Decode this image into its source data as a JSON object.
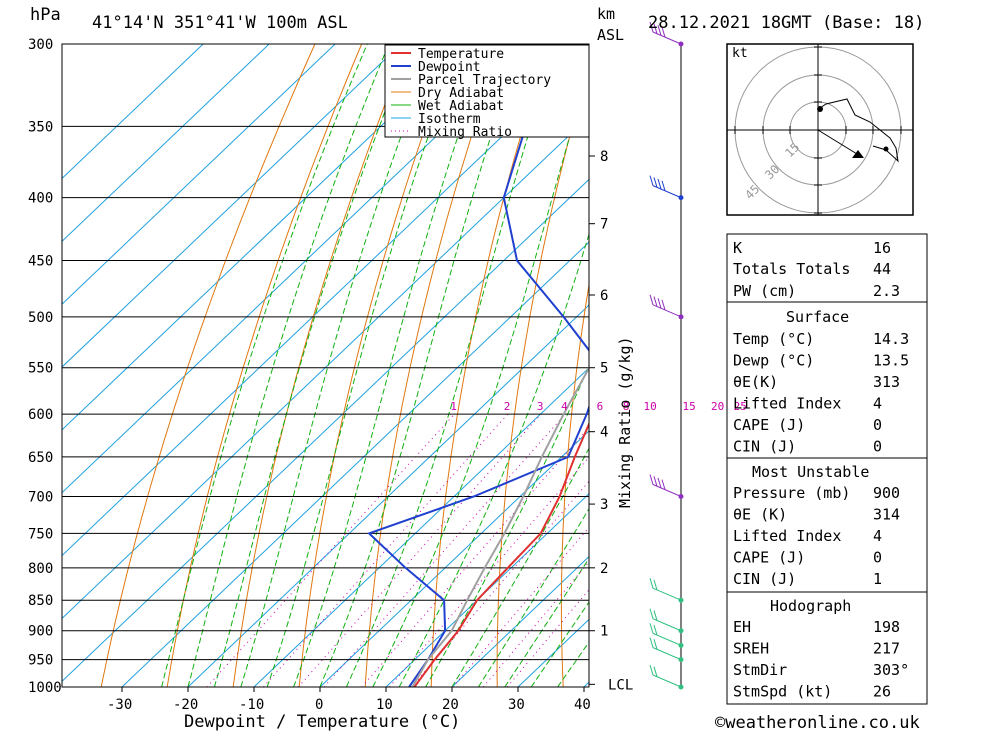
{
  "header": {
    "p_unit": "hPa",
    "location": "41°14'N  351°41'W  100m  ASL",
    "km_unit": "km",
    "km_sub": "ASL",
    "datetime": "28.12.2021  18GMT  (Base: 18)"
  },
  "footer": {
    "credit": "©weatheronline.co.uk"
  },
  "colors": {
    "temperature": "#e03030",
    "dewpoint": "#2040d0",
    "parcel": "#a0a0a0",
    "dry_adiabat": "#e07810",
    "wet_adiabat": "#10b010",
    "isotherm": "#20a0e0",
    "mixing_ratio": "#cc00aa",
    "wind": "#9030c0",
    "wind_low": "#30c080"
  },
  "chart_data": {
    "type": "skew-t",
    "xlabel": "Dewpoint / Temperature (°C)",
    "y2label": "Mixing Ratio (g/kg)",
    "pressure_levels": [
      300,
      350,
      400,
      450,
      500,
      550,
      600,
      650,
      700,
      750,
      800,
      850,
      900,
      950,
      1000
    ],
    "temp_ticks": [
      -30,
      -20,
      -10,
      0,
      10,
      20,
      30,
      40
    ],
    "km_ticks": [
      {
        "label": "8",
        "p": 370
      },
      {
        "label": "7",
        "p": 420
      },
      {
        "label": "6",
        "p": 480
      },
      {
        "label": "5",
        "p": 550
      },
      {
        "label": "4",
        "p": 620
      },
      {
        "label": "3",
        "p": 710
      },
      {
        "label": "2",
        "p": 800
      },
      {
        "label": "1",
        "p": 900
      },
      {
        "label": "LCL",
        "p": 995
      }
    ],
    "mixing_ratio_labels": [
      "1",
      "2",
      "3",
      "4",
      "6",
      "8",
      "10",
      "15",
      "20",
      "25"
    ],
    "mixing_ratio_values": [
      1,
      2,
      3,
      4,
      6,
      8,
      10,
      15,
      20,
      25
    ],
    "legend": [
      "Temperature",
      "Dewpoint",
      "Parcel Trajectory",
      "Dry Adiabat",
      "Wet Adiabat",
      "Isotherm",
      "Mixing Ratio"
    ],
    "series": [
      {
        "name": "Temperature",
        "points": [
          [
            14.3,
            1000
          ],
          [
            13,
            950
          ],
          [
            12,
            900
          ],
          [
            10,
            850
          ],
          [
            9.5,
            800
          ],
          [
            9,
            750
          ],
          [
            6,
            700
          ],
          [
            2,
            650
          ],
          [
            -2,
            600
          ],
          [
            -5,
            550
          ],
          [
            -8,
            500
          ],
          [
            -13,
            450
          ],
          [
            -20,
            400
          ],
          [
            -28,
            350
          ],
          [
            -36,
            300
          ]
        ]
      },
      {
        "name": "Dewpoint",
        "points": [
          [
            13.5,
            1000
          ],
          [
            12,
            950
          ],
          [
            10,
            900
          ],
          [
            5,
            850
          ],
          [
            -6,
            800
          ],
          [
            -17,
            750
          ],
          [
            -7,
            700
          ],
          [
            1,
            650
          ],
          [
            -3,
            600
          ],
          [
            -8,
            550
          ],
          [
            -22,
            500
          ],
          [
            -38,
            450
          ],
          [
            -50,
            400
          ],
          [
            -58,
            350
          ],
          [
            -65,
            300
          ]
        ]
      },
      {
        "name": "Parcel Trajectory",
        "points": [
          [
            14,
            1000
          ],
          [
            12,
            950
          ],
          [
            11,
            900
          ],
          [
            8.5,
            850
          ],
          [
            6,
            800
          ],
          [
            3.5,
            750
          ],
          [
            0.5,
            700
          ],
          [
            -3,
            650
          ],
          [
            -6.5,
            600
          ],
          [
            -10,
            550
          ],
          [
            -15,
            500
          ],
          [
            -21,
            450
          ],
          [
            -28,
            400
          ],
          [
            -37,
            350
          ],
          [
            -47,
            300
          ]
        ]
      }
    ],
    "wind_barbs_p": [
      300,
      400,
      500,
      700,
      850,
      900,
      925,
      950,
      1000
    ]
  },
  "indices": [
    {
      "label": "K",
      "value": "16"
    },
    {
      "label": "Totals Totals",
      "value": "44"
    },
    {
      "label": "PW (cm)",
      "value": "2.3"
    }
  ],
  "surface": {
    "title": "Surface",
    "rows": [
      {
        "label": "Temp (°C)",
        "value": "14.3"
      },
      {
        "label": "Dewp (°C)",
        "value": "13.5"
      },
      {
        "label": "θE(K)",
        "value": "313"
      },
      {
        "label": "Lifted Index",
        "value": "4"
      },
      {
        "label": "CAPE (J)",
        "value": "0"
      },
      {
        "label": "CIN (J)",
        "value": "0"
      }
    ]
  },
  "most_unstable": {
    "title": "Most Unstable",
    "rows": [
      {
        "label": "Pressure (mb)",
        "value": "900"
      },
      {
        "label": "θE (K)",
        "value": "314"
      },
      {
        "label": "Lifted Index",
        "value": "4"
      },
      {
        "label": "CAPE (J)",
        "value": "0"
      },
      {
        "label": "CIN (J)",
        "value": "1"
      }
    ]
  },
  "hodograph": {
    "title": "Hodograph",
    "unit": "kt",
    "ring_labels": [
      "15",
      "30",
      "45"
    ],
    "rows": [
      {
        "label": "EH",
        "value": "198"
      },
      {
        "label": "SREH",
        "value": "217"
      },
      {
        "label": "StmDir",
        "value": "303°"
      },
      {
        "label": "StmSpd (kt)",
        "value": "26"
      }
    ]
  }
}
